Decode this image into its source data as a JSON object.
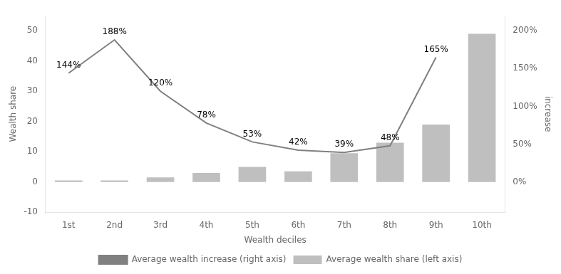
{
  "chart_data": {
    "type": "bar",
    "categories": [
      "1st",
      "2nd",
      "3rd",
      "4th",
      "5th",
      "6th",
      "7th",
      "8th",
      "9th",
      "10th"
    ],
    "xlabel": "Wealth deciles",
    "ylabel": "Wealth share",
    "y2label": "increase",
    "ylim": [
      -10,
      55
    ],
    "yticks": [
      -10,
      0,
      10,
      20,
      30,
      40,
      50
    ],
    "y2lim": [
      -40,
      220
    ],
    "y2ticks": [
      {
        "value": 0,
        "label": "0%"
      },
      {
        "value": 50,
        "label": "50%"
      },
      {
        "value": 100,
        "label": "100%"
      },
      {
        "value": 150,
        "label": "150%"
      },
      {
        "value": 200,
        "label": "200%"
      }
    ],
    "grid": false,
    "legend": "bottom",
    "series": [
      {
        "name": "Average wealth share (left axis)",
        "type": "bar",
        "color": "#bfbfbf",
        "values": [
          0.5,
          0.5,
          1.5,
          3.0,
          5.0,
          3.5,
          9.5,
          13.0,
          19.0,
          49.0
        ]
      },
      {
        "name": "Average wealth increase (right axis)",
        "type": "line",
        "axis": "y2",
        "color": "#808080",
        "values": [
          144,
          188,
          120,
          78,
          53,
          42,
          39,
          48,
          165,
          null
        ],
        "value_labels": [
          "144%",
          "188%",
          "120%",
          "78%",
          "53%",
          "42%",
          "39%",
          "48%",
          "165%",
          null
        ],
        "data_labels": true
      }
    ]
  }
}
